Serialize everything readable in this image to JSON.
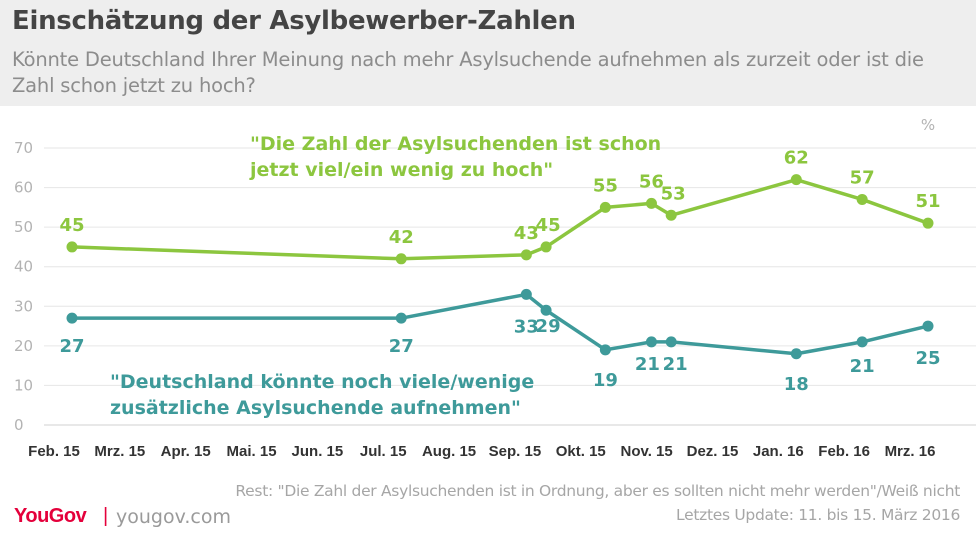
{
  "header": {
    "title": "Einschätzung der Asylbewerber-Zahlen",
    "subtitle": "Könnte Deutschland Ihrer Meinung nach mehr Asylsuchende aufnehmen als zurzeit oder ist die Zahl schon jetzt zu hoch?"
  },
  "footer": {
    "note": "Rest: \"Die Zahl der Asylsuchenden ist in Ordnung, aber es sollten nicht mehr werden\"/Weiß nicht",
    "update": "Letztes Update: 11. bis 15. März 2016",
    "logo": "YouGov",
    "separator": "|",
    "url": "yougov.com"
  },
  "colors": {
    "green": "#8cc63f",
    "teal": "#3e9a9a",
    "grid": "#e6e6e6",
    "tick": "#b3b3b3",
    "xtick": "#333333",
    "brand": "#e4003b"
  },
  "chart_data": {
    "type": "line",
    "unit": "%",
    "ylim": [
      0,
      70
    ],
    "yticks": [
      0,
      10,
      20,
      30,
      40,
      50,
      60,
      70
    ],
    "grid": true,
    "x_labels": [
      "Feb. 15",
      "Mrz. 15",
      "Apr. 15",
      "Mai. 15",
      "Jun. 15",
      "Jul. 15",
      "Aug. 15",
      "Sep. 15",
      "Okt. 15",
      "Nov. 15",
      "Dez. 15",
      "Jan. 16",
      "Feb. 16",
      "Mrz. 16"
    ],
    "series": [
      {
        "name": "\"Die Zahl der Asylsuchenden ist schon jetzt viel/ein wenig zu hoch\"",
        "label_lines": [
          "\"Die Zahl der Asylsuchenden ist schon",
          "jetzt viel/ein wenig zu hoch\""
        ],
        "color": "#8cc63f",
        "x": [
          "2015-02",
          "2015-07",
          "2015-09",
          "2015-09",
          "2015-10",
          "2015-11",
          "2015-11",
          "2016-01",
          "2016-02",
          "2016-03"
        ],
        "values": [
          45,
          42,
          43,
          45,
          55,
          56,
          53,
          62,
          57,
          51
        ],
        "labels": [
          "45",
          "42",
          "43",
          "45",
          "55",
          "56",
          "53",
          "62",
          "57",
          "51"
        ]
      },
      {
        "name": "\"Deutschland könnte noch viele/wenige zusätzliche Asylsuchende aufnehmen\"",
        "label_lines": [
          "\"Deutschland könnte noch viele/wenige",
          "zusätzliche Asylsuchende aufnehmen\""
        ],
        "color": "#3e9a9a",
        "x": [
          "2015-02",
          "2015-07",
          "2015-09",
          "2015-09",
          "2015-10",
          "2015-11",
          "2015-11",
          "2016-01",
          "2016-02",
          "2016-03"
        ],
        "values": [
          27,
          27,
          33,
          29,
          19,
          21,
          21,
          18,
          21,
          25
        ],
        "labels": [
          "27",
          "27",
          "33",
          "29",
          "19",
          "21",
          "21",
          "18",
          "21",
          "25"
        ]
      }
    ]
  }
}
